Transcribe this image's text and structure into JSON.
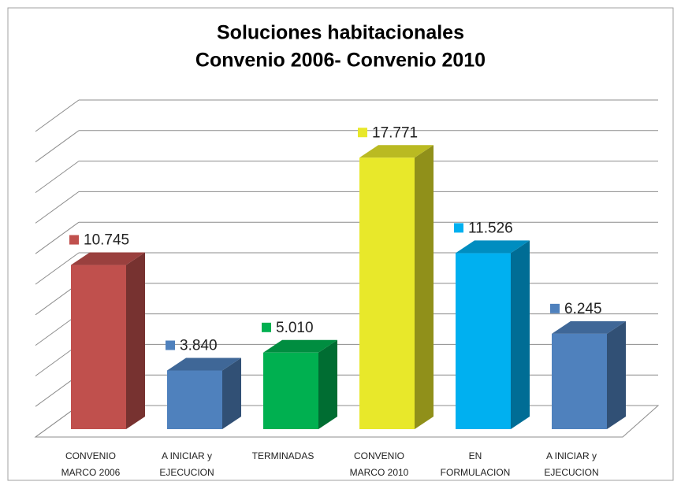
{
  "chart_data": {
    "type": "bar3d",
    "title": [
      "Soluciones habitacionales",
      "Convenio 2006- Convenio 2010"
    ],
    "categories": [
      [
        "CONVENIO",
        "MARCO 2006"
      ],
      [
        "A INICIAR y",
        "EJECUCION"
      ],
      [
        "TERMINADAS"
      ],
      [
        "CONVENIO",
        "MARCO 2010"
      ],
      [
        "EN",
        "FORMULACION"
      ],
      [
        "A INICIAR y",
        "EJECUCION"
      ]
    ],
    "values": [
      10745,
      3840,
      5010,
      17771,
      11526,
      6245
    ],
    "value_labels": [
      "10.745",
      "3.840",
      "5.010",
      "17.771",
      "11.526",
      "6.245"
    ],
    "colors": [
      "#c0504d",
      "#4f81bd",
      "#00b050",
      "#e8e82a",
      "#00b0f0",
      "#4f81bd"
    ],
    "ylim": [
      0,
      20000
    ],
    "yticks": [
      0,
      2000,
      4000,
      6000,
      8000,
      10000,
      12000,
      14000,
      16000,
      18000,
      20000
    ],
    "grid": true
  }
}
